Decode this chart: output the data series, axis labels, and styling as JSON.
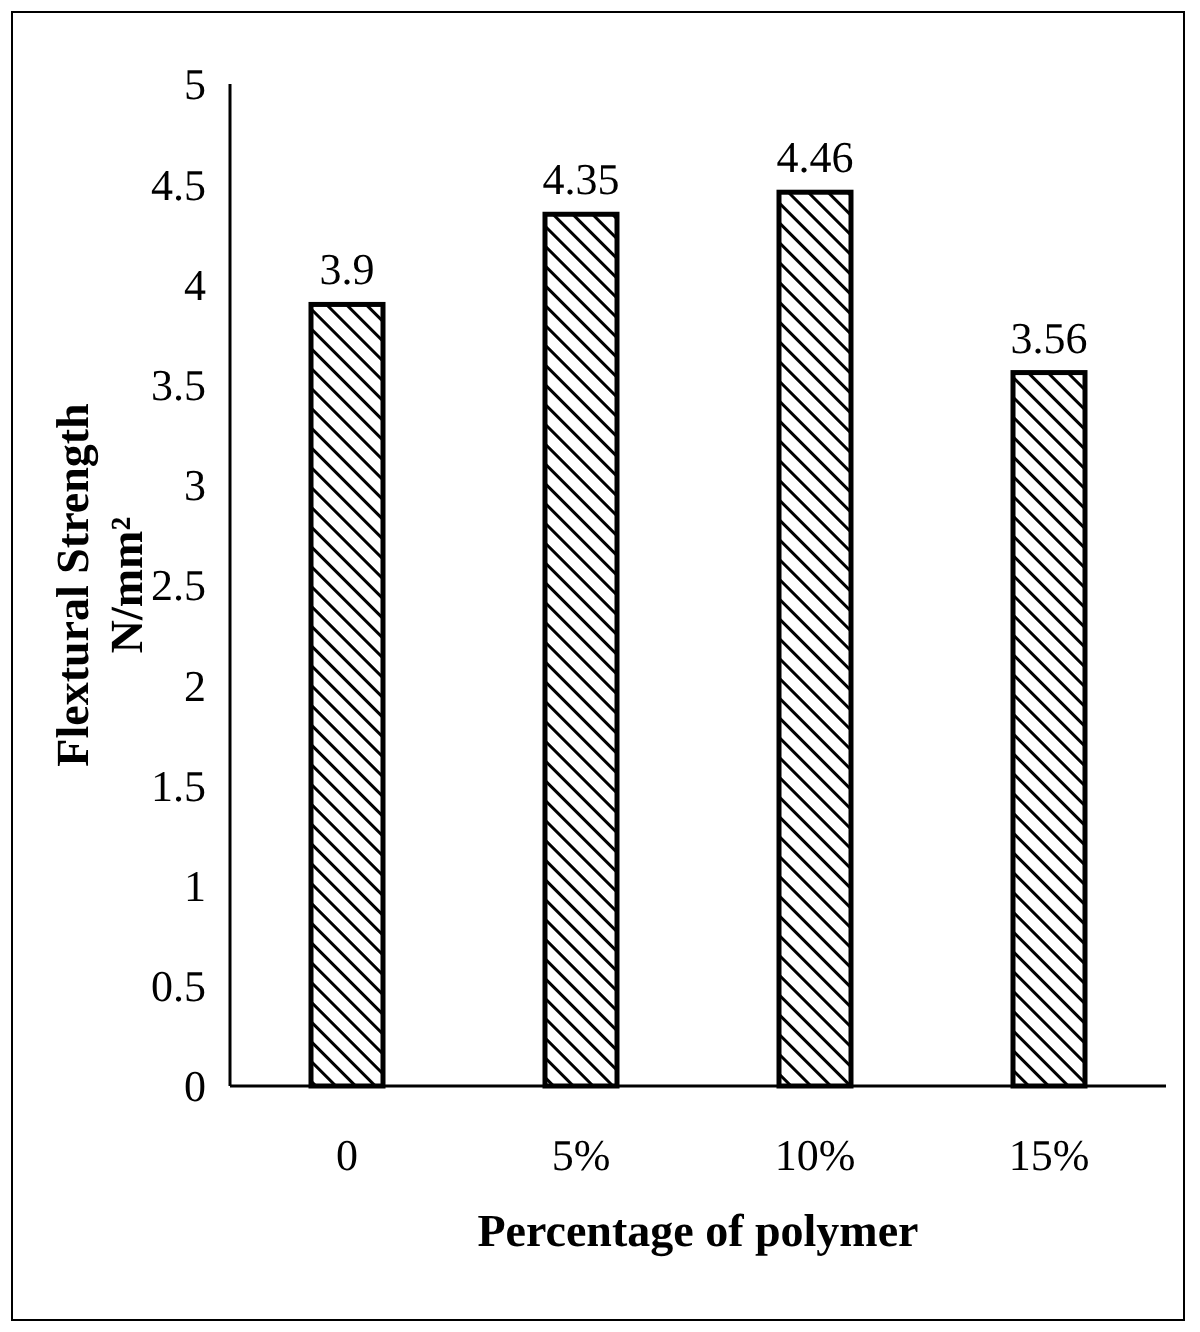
{
  "chart_data": {
    "type": "bar",
    "xlabel": "Percentage of polymer",
    "ylabel": "Flextural Strength\nN/mm²",
    "categories": [
      "0",
      "5%",
      "10%",
      "15%"
    ],
    "values": [
      3.9,
      4.35,
      4.46,
      3.56
    ],
    "color": "#000000",
    "ylim": [
      0,
      5
    ],
    "yticks": [
      0,
      0.5,
      1,
      1.5,
      2,
      2.5,
      3,
      3.5,
      4,
      4.5,
      5
    ],
    "data_labels": true,
    "grid": false
  }
}
